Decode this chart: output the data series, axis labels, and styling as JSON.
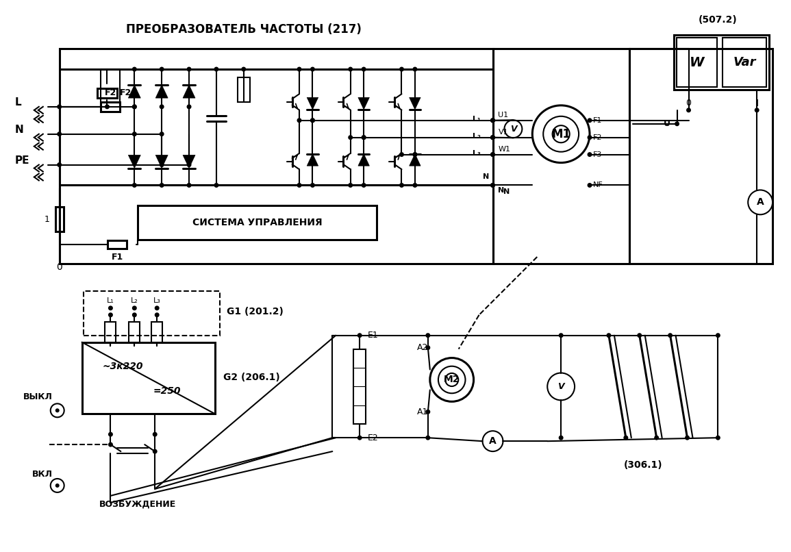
{
  "title": "ПРЕОБРАЗОВАТЕЛЬ ЧАСТОТЫ (217)",
  "label_507": "(507.2)",
  "label_G1": "G1 (201.2)",
  "label_G2": "G2 (206.1)",
  "label_306": "(306.1)",
  "label_control": "СИСТЕМА УПРАВЛЕНИЯ",
  "label_vykl": "ВЫКЛ",
  "label_vkl": "ВКЛ",
  "label_vozb": "ВОЗБУЖДЕНИЕ",
  "bg_color": "#ffffff",
  "lc": "#000000",
  "fig_w": 11.55,
  "fig_h": 8.06,
  "dpi": 100
}
